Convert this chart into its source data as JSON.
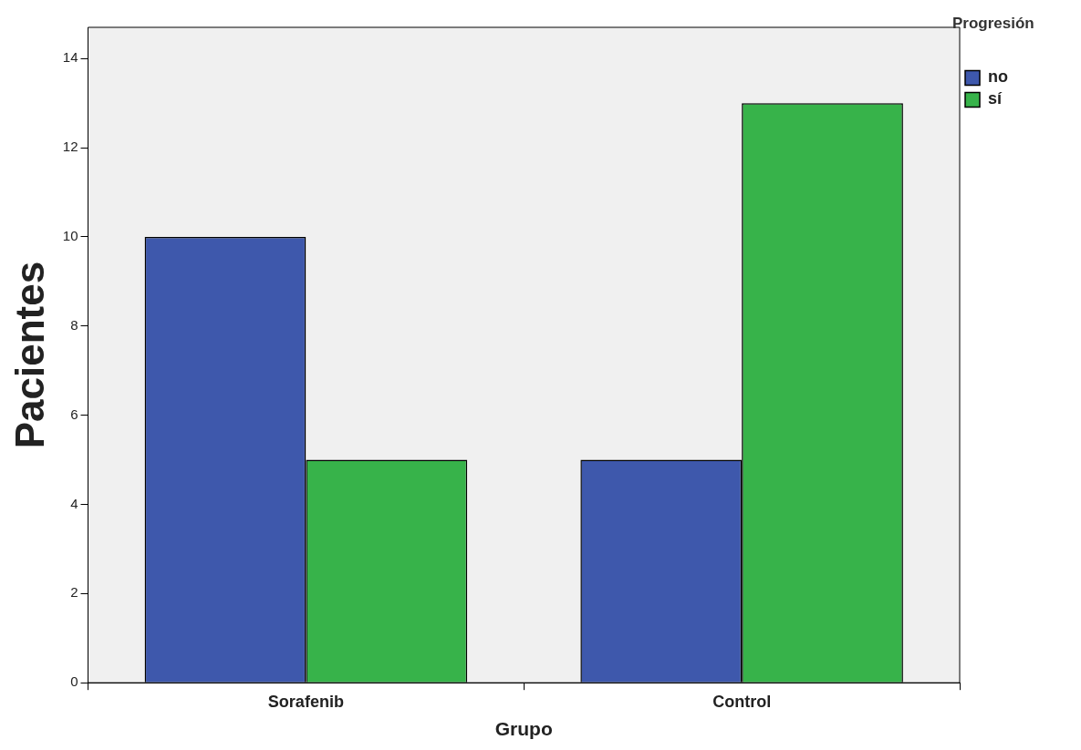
{
  "chart_data": {
    "type": "bar",
    "xlabel": "Grupo",
    "ylabel": "Pacientes",
    "legend_title": "Progresión",
    "legend": "top right",
    "categories": [
      "Sorafenib",
      "Control"
    ],
    "series": [
      {
        "name": "no",
        "color": "#3e58ac",
        "values": [
          10,
          5
        ]
      },
      {
        "name": "sí",
        "color": "#37b34a",
        "values": [
          5,
          13
        ]
      }
    ],
    "ylim": [
      0,
      14.7
    ],
    "yticks": [
      0,
      2,
      4,
      6,
      8,
      10,
      12,
      14
    ],
    "grid": false
  }
}
